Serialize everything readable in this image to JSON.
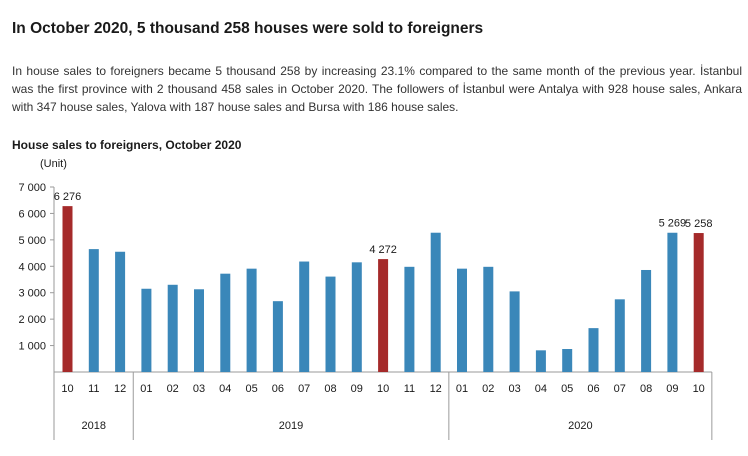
{
  "headline": "In October 2020, 5 thousand 258 houses were sold to foreigners",
  "intro": "In house sales to foreigners became 5 thousand 258 by increasing 23.1% compared to the same month of the previous year. İstanbul was the first province with 2 thousand 458 sales in October 2020. The followers of İstanbul were Antalya with 928 house sales, Ankara with 347 house sales, Yalova with 187 house sales and Bursa with 186 house sales.",
  "colors": {
    "regular_bar": "#3a87b9",
    "highlight_bar": "#a52a2a",
    "axis": "#9a9a9a"
  },
  "chart_data": {
    "type": "bar",
    "title": "House sales to foreigners, October 2020",
    "ylabel": "(Unit)",
    "ylim": [
      0,
      7000
    ],
    "yticks": [
      {
        "value": 1000,
        "label": "1 000"
      },
      {
        "value": 2000,
        "label": "2 000"
      },
      {
        "value": 3000,
        "label": "3 000"
      },
      {
        "value": 4000,
        "label": "4 000"
      },
      {
        "value": 5000,
        "label": "5 000"
      },
      {
        "value": 6000,
        "label": "6 000"
      },
      {
        "value": 7000,
        "label": "7 000"
      }
    ],
    "grid": false,
    "categories": [
      "10",
      "11",
      "12",
      "01",
      "02",
      "03",
      "04",
      "05",
      "06",
      "07",
      "08",
      "09",
      "10",
      "11",
      "12",
      "01",
      "02",
      "03",
      "04",
      "05",
      "06",
      "07",
      "08",
      "09",
      "10"
    ],
    "years": [
      {
        "label": "2018",
        "count": 3
      },
      {
        "label": "2019",
        "count": 12
      },
      {
        "label": "2020",
        "count": 10
      }
    ],
    "values": [
      6276,
      4650,
      4550,
      3150,
      3300,
      3130,
      3720,
      3910,
      2680,
      4180,
      3610,
      4150,
      4272,
      3980,
      5270,
      3910,
      3980,
      3050,
      820,
      870,
      1660,
      2750,
      3860,
      5269,
      5258
    ],
    "highlighted": [
      0,
      12,
      24
    ],
    "data_labels": [
      {
        "index": 0,
        "text": "6 276"
      },
      {
        "index": 12,
        "text": "4 272"
      },
      {
        "index": 23,
        "text": "5 269"
      },
      {
        "index": 24,
        "text": "5 258"
      }
    ]
  }
}
